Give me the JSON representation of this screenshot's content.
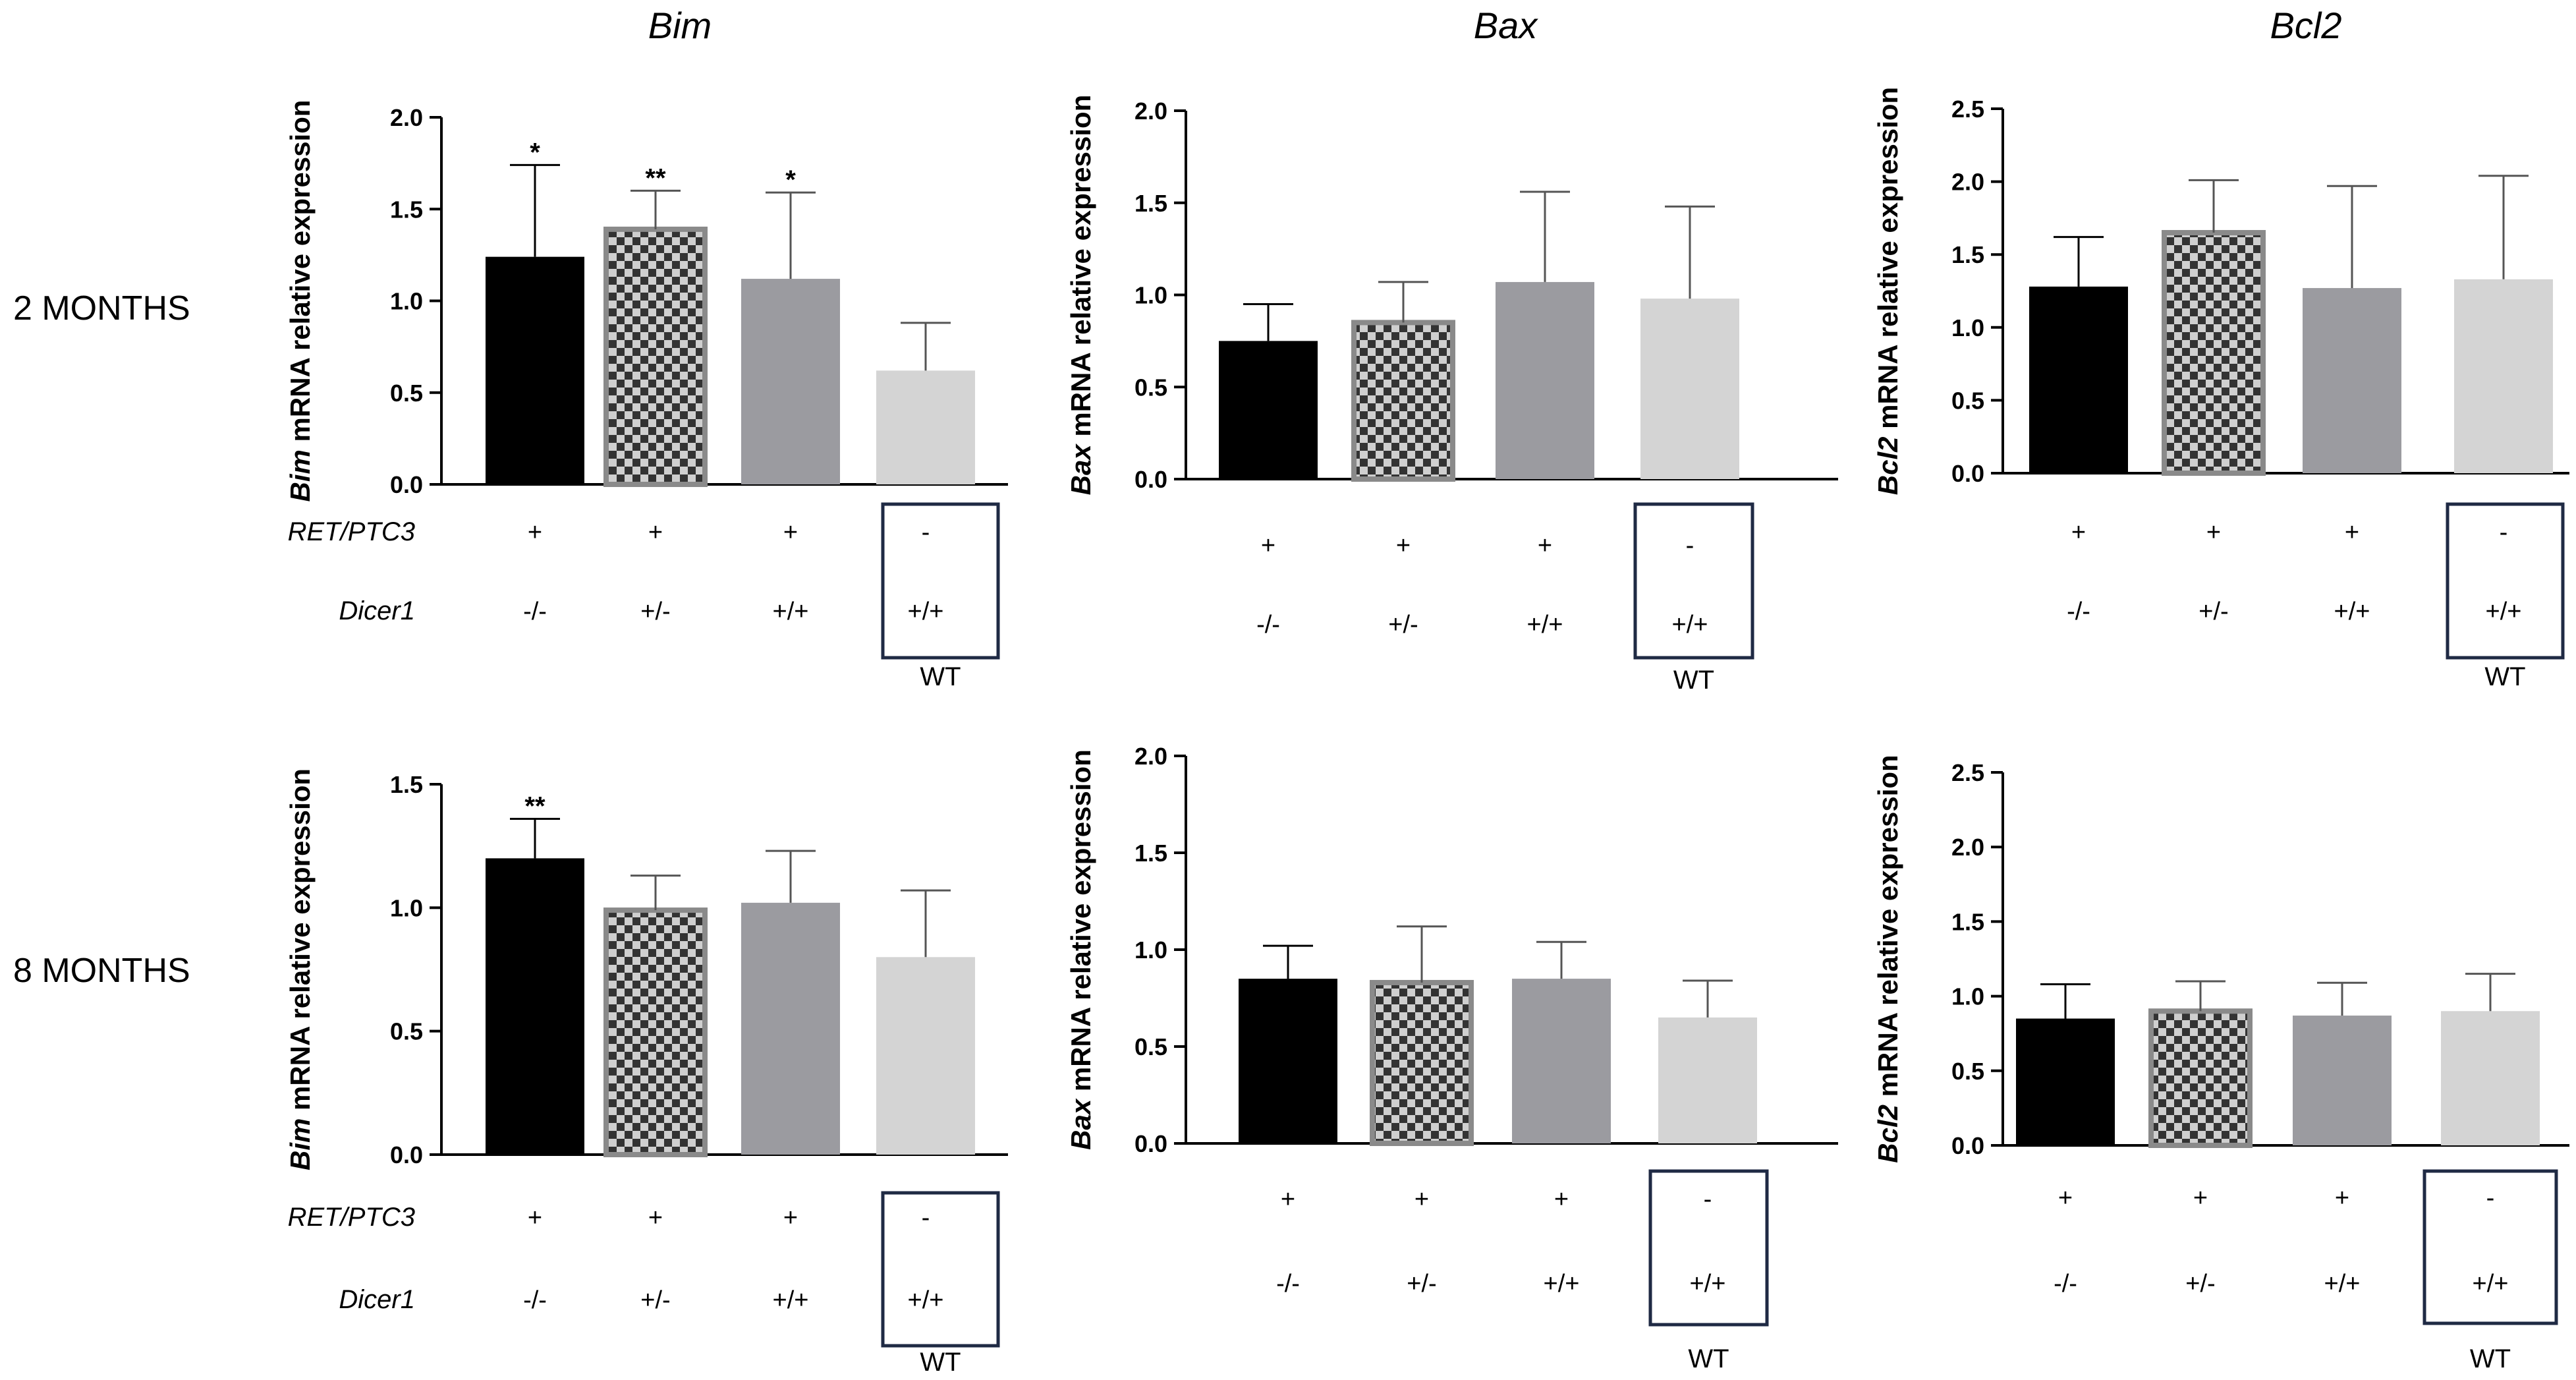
{
  "figure": {
    "row_labels": [
      "2 MONTHS",
      "8 MONTHS"
    ],
    "column_titles": [
      "Bim",
      "Bax",
      "Bcl2"
    ],
    "row_labels_genotype": [
      "RET/PTC3",
      "Dicer1"
    ],
    "wt_label": "WT",
    "ret_values": [
      "+",
      "+",
      "+",
      "-"
    ],
    "dicer_values": [
      "-/-",
      "+/-",
      "+/+",
      "+/+"
    ],
    "colors": {
      "black": "#000000",
      "checker_dark": "#333333",
      "checker_light": "#cfcfcf",
      "mid_gray": "#9b9ba0",
      "light_gray": "#d4d4d4",
      "box": "#1f2a44"
    }
  },
  "chart_data": [
    {
      "type": "bar",
      "title": "Bim",
      "gene": "Bim",
      "ylabel_suffix": " mRNA relative expression",
      "categories": [
        "-/-",
        "+/-",
        "+/+",
        "+/+"
      ],
      "values": [
        1.24,
        1.39,
        1.12,
        0.62
      ],
      "errors": [
        0.5,
        0.21,
        0.47,
        0.26
      ],
      "significance": [
        "*",
        "**",
        "*",
        ""
      ],
      "ylim": [
        0,
        2.0
      ],
      "yticks": [
        "0.0",
        "0.5",
        "1.0",
        "1.5",
        "2.0"
      ],
      "show_genotype_labels": true
    },
    {
      "type": "bar",
      "title": "Bax",
      "gene": "Bax",
      "ylabel_suffix": " mRNA relative expression",
      "categories": [
        "-/-",
        "+/-",
        "+/+",
        "+/+"
      ],
      "values": [
        0.75,
        0.85,
        1.07,
        0.98
      ],
      "errors": [
        0.2,
        0.22,
        0.49,
        0.5
      ],
      "significance": [
        "",
        "",
        "",
        ""
      ],
      "ylim": [
        0,
        2.0
      ],
      "yticks": [
        "0.0",
        "0.5",
        "1.0",
        "1.5",
        "2.0"
      ],
      "show_genotype_labels": false
    },
    {
      "type": "bar",
      "title": "Bcl2",
      "gene": "Bcl2",
      "ylabel_suffix": " mRNA relative expression",
      "categories": [
        "-/-",
        "+/-",
        "+/+",
        "+/+"
      ],
      "values": [
        1.28,
        1.65,
        1.27,
        1.33
      ],
      "errors": [
        0.34,
        0.36,
        0.7,
        0.71
      ],
      "significance": [
        "",
        "",
        "",
        ""
      ],
      "ylim": [
        0,
        2.5
      ],
      "yticks": [
        "0.0",
        "0.5",
        "1.0",
        "1.5",
        "2.0",
        "2.5"
      ],
      "show_genotype_labels": false
    },
    {
      "type": "bar",
      "title": "",
      "gene": "Bim",
      "ylabel_suffix": " mRNA relative expression",
      "categories": [
        "-/-",
        "+/-",
        "+/+",
        "+/+"
      ],
      "values": [
        1.2,
        0.99,
        1.02,
        0.8
      ],
      "errors": [
        0.16,
        0.14,
        0.21,
        0.27
      ],
      "significance": [
        "**",
        "",
        "",
        ""
      ],
      "ylim": [
        0,
        1.5
      ],
      "yticks": [
        "0.0",
        "0.5",
        "1.0",
        "1.5"
      ],
      "show_genotype_labels": true
    },
    {
      "type": "bar",
      "title": "",
      "gene": "Bax",
      "ylabel_suffix": " mRNA relative expression",
      "categories": [
        "-/-",
        "+/-",
        "+/+",
        "+/+"
      ],
      "values": [
        0.85,
        0.83,
        0.85,
        0.65
      ],
      "errors": [
        0.17,
        0.29,
        0.19,
        0.19
      ],
      "significance": [
        "",
        "",
        "",
        ""
      ],
      "ylim": [
        0,
        2.0
      ],
      "yticks": [
        "0.0",
        "0.5",
        "1.0",
        "1.5",
        "2.0"
      ],
      "show_genotype_labels": false
    },
    {
      "type": "bar",
      "title": "",
      "gene": "Bcl2",
      "ylabel_suffix": " mRNA relative expression",
      "categories": [
        "-/-",
        "+/-",
        "+/+",
        "+/+"
      ],
      "values": [
        0.85,
        0.9,
        0.87,
        0.9
      ],
      "errors": [
        0.23,
        0.2,
        0.22,
        0.25
      ],
      "significance": [
        "",
        "",
        "",
        ""
      ],
      "ylim": [
        0,
        2.5
      ],
      "yticks": [
        "0.0",
        "0.5",
        "1.0",
        "1.5",
        "2.0",
        "2.5"
      ],
      "show_genotype_labels": false
    }
  ]
}
